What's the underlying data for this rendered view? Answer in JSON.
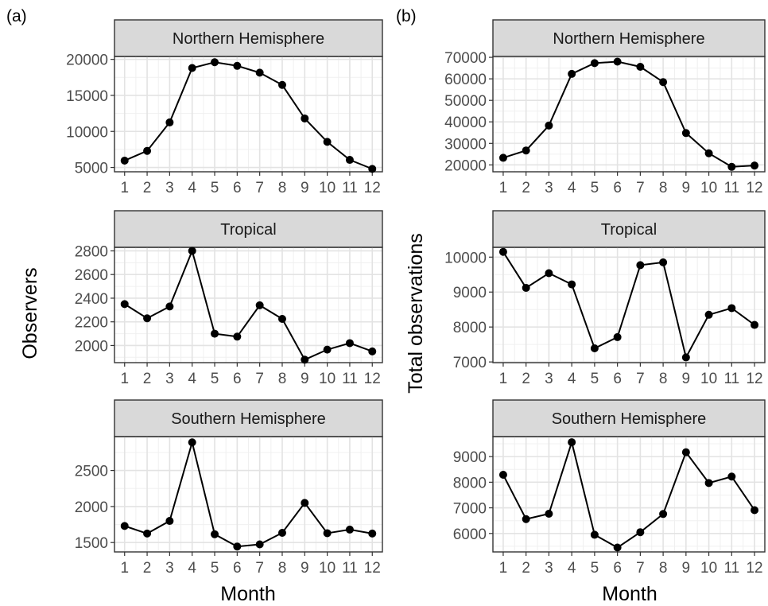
{
  "figure": {
    "panel_labels": [
      "(a)",
      "(b)"
    ],
    "xlabel": "Month",
    "ylabels": [
      "Observers",
      "Total observations"
    ]
  },
  "chart_data": [
    {
      "type": "line",
      "panel": "(a)",
      "title": "Northern Hemisphere",
      "xlabel": "Month",
      "ylabel": "Observers",
      "x": [
        1,
        2,
        3,
        4,
        5,
        6,
        7,
        8,
        9,
        10,
        11,
        12
      ],
      "values": [
        5950,
        7300,
        11250,
        18800,
        19600,
        19100,
        18150,
        16450,
        11800,
        8550,
        6050,
        4800
      ],
      "xlim": [
        0.55,
        12.45
      ],
      "ylim": [
        4400,
        20400
      ],
      "yticks": [
        5000,
        10000,
        15000,
        20000
      ],
      "grid": true
    },
    {
      "type": "line",
      "panel": "(a)",
      "title": "Tropical",
      "xlabel": "Month",
      "ylabel": "Observers",
      "x": [
        1,
        2,
        3,
        4,
        5,
        6,
        7,
        8,
        9,
        10,
        11,
        12
      ],
      "values": [
        2350,
        2230,
        2330,
        2800,
        2100,
        2075,
        2340,
        2225,
        1880,
        1965,
        2020,
        1950
      ],
      "xlim": [
        0.55,
        12.45
      ],
      "ylim": [
        1855,
        2830
      ],
      "yticks": [
        2000,
        2200,
        2400,
        2600,
        2800
      ],
      "grid": true
    },
    {
      "type": "line",
      "panel": "(a)",
      "title": "Southern Hemisphere",
      "xlabel": "Month",
      "ylabel": "Observers",
      "x": [
        1,
        2,
        3,
        4,
        5,
        6,
        7,
        8,
        9,
        10,
        11,
        12
      ],
      "values": [
        1730,
        1625,
        1800,
        2890,
        1615,
        1445,
        1475,
        1635,
        2050,
        1630,
        1680,
        1625
      ],
      "xlim": [
        0.55,
        12.45
      ],
      "ylim": [
        1370,
        2970
      ],
      "yticks": [
        1500,
        2000,
        2500
      ],
      "grid": true
    },
    {
      "type": "line",
      "panel": "(b)",
      "title": "Northern Hemisphere",
      "xlabel": "Month",
      "ylabel": "Total observations",
      "x": [
        1,
        2,
        3,
        4,
        5,
        6,
        7,
        8,
        9,
        10,
        11,
        12
      ],
      "values": [
        23300,
        26700,
        38300,
        62300,
        67300,
        68000,
        65600,
        58500,
        34800,
        25400,
        19100,
        19700
      ],
      "xlim": [
        0.55,
        12.45
      ],
      "ylim": [
        16800,
        70400
      ],
      "yticks": [
        20000,
        30000,
        40000,
        50000,
        60000,
        70000
      ],
      "grid": true
    },
    {
      "type": "line",
      "panel": "(b)",
      "title": "Tropical",
      "xlabel": "Month",
      "ylabel": "Total observations",
      "x": [
        1,
        2,
        3,
        4,
        5,
        6,
        7,
        8,
        9,
        10,
        11,
        12
      ],
      "values": [
        10150,
        9120,
        9540,
        9220,
        7390,
        7710,
        9770,
        9850,
        7130,
        8350,
        8540,
        8060
      ],
      "xlim": [
        0.55,
        12.45
      ],
      "ylim": [
        6980,
        10280
      ],
      "yticks": [
        7000,
        8000,
        9000,
        10000
      ],
      "grid": true
    },
    {
      "type": "line",
      "panel": "(b)",
      "title": "Southern Hemisphere",
      "xlabel": "Month",
      "ylabel": "Total observations",
      "x": [
        1,
        2,
        3,
        4,
        5,
        6,
        7,
        8,
        9,
        10,
        11,
        12
      ],
      "values": [
        8290,
        6560,
        6770,
        9560,
        5950,
        5450,
        6050,
        6760,
        9170,
        7970,
        8220,
        6910
      ],
      "xlim": [
        0.55,
        12.45
      ],
      "ylim": [
        5280,
        9780
      ],
      "yticks": [
        6000,
        7000,
        8000,
        9000
      ],
      "grid": true
    }
  ]
}
